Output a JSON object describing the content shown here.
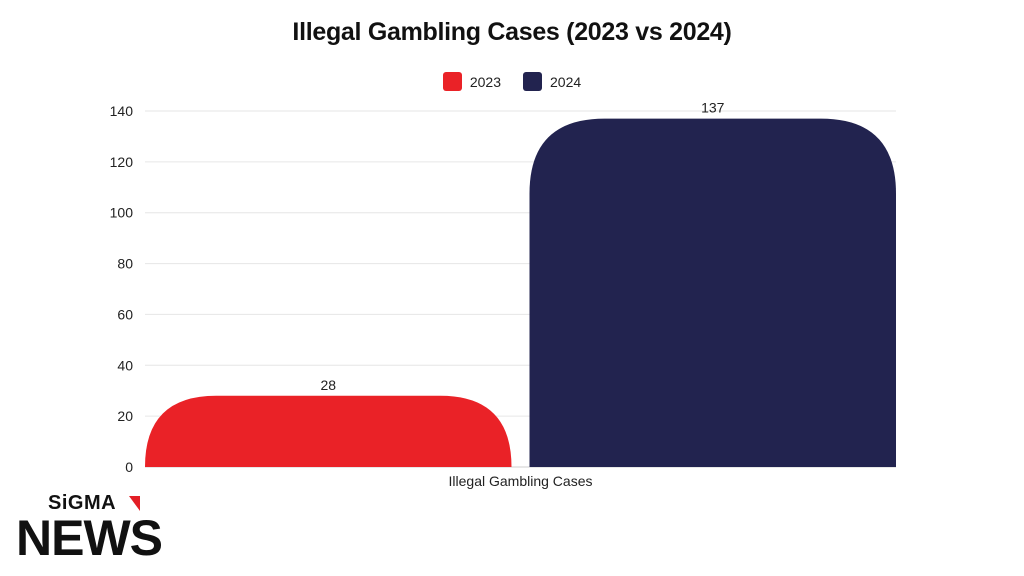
{
  "chart_data": {
    "type": "bar",
    "title": "Illegal Gambling Cases (2023 vs 2024)",
    "categories": [
      "Illegal Gambling Cases"
    ],
    "series": [
      {
        "name": "2023",
        "values": [
          28
        ],
        "color": "#ea2227"
      },
      {
        "name": "2024",
        "values": [
          137
        ],
        "color": "#22234f"
      }
    ],
    "xlabel": "",
    "ylabel": "",
    "ylim": [
      0,
      140
    ],
    "yticks": [
      0,
      20,
      40,
      60,
      80,
      100,
      120,
      140
    ],
    "grid": true,
    "legend_position": "top-center",
    "data_labels": true
  },
  "branding": {
    "logo_top": "SiGMA",
    "logo_bottom": "NEWS",
    "accent_color": "#e31f26"
  }
}
